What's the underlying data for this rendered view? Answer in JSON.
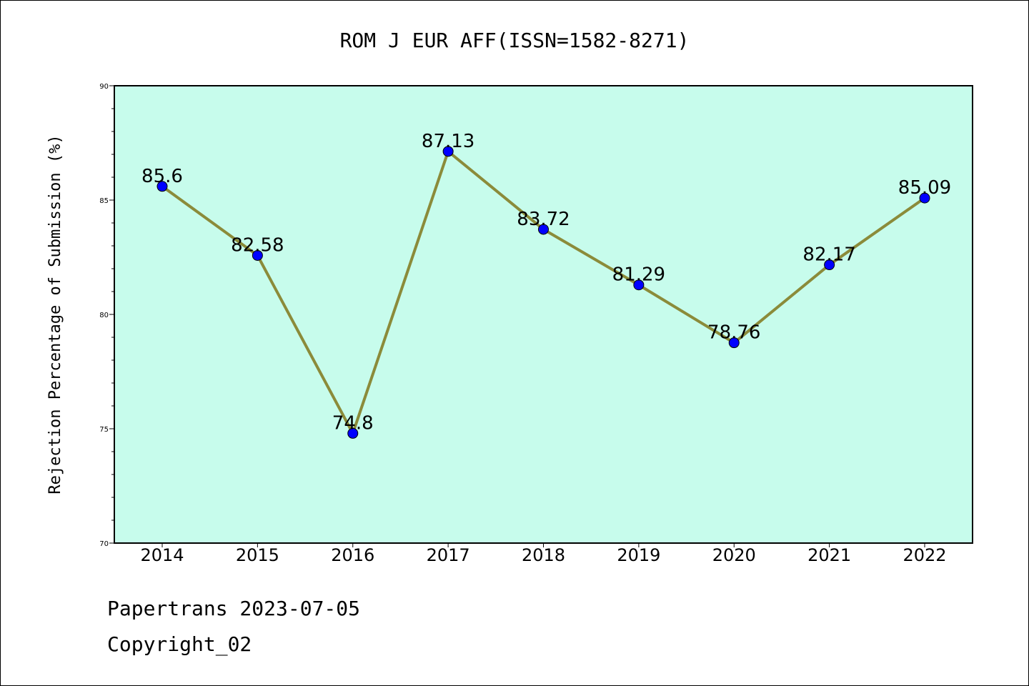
{
  "chart_data": {
    "type": "line",
    "title": "ROM J EUR AFF(ISSN=1582-8271)",
    "xlabel": "",
    "ylabel": "Rejection Percentage of Submission (%)",
    "categories": [
      "2014",
      "2015",
      "2016",
      "2017",
      "2018",
      "2019",
      "2020",
      "2021",
      "2022"
    ],
    "series": [
      {
        "values": [
          85.6,
          82.58,
          74.8,
          87.13,
          83.72,
          81.29,
          78.76,
          82.17,
          85.09
        ],
        "labels": [
          "85.6",
          "82.58",
          "74.8",
          "87.13",
          "83.72",
          "81.29",
          "78.76",
          "82.17",
          "85.09"
        ]
      }
    ],
    "ylim": [
      70,
      90
    ],
    "yticks": [
      "70",
      "75",
      "80",
      "85",
      "90"
    ],
    "grid": false,
    "colors": {
      "plot_background": "#c7fcec",
      "line": "#8b8b3a",
      "marker": "#0000ff"
    }
  },
  "footer": {
    "line1": "Papertrans 2023-07-05",
    "line2": "Copyright_02"
  }
}
